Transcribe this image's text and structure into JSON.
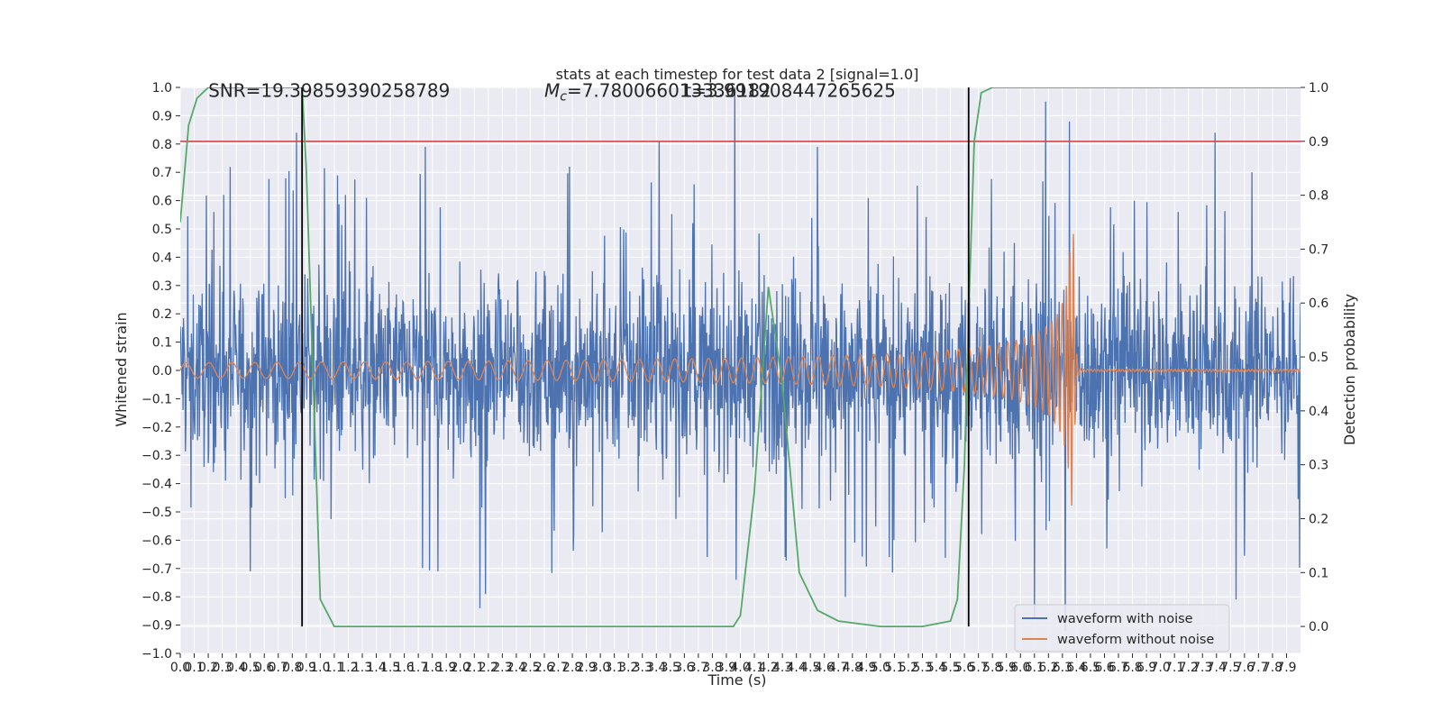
{
  "chart_data": {
    "type": "line",
    "title": "stats at each timestep for test data 2 [signal=1.0]",
    "xlabel": "Time (s)",
    "ylabel": "Whitened strain",
    "ylabel_right": "Detection probability",
    "xlim": [
      0.0,
      8.0
    ],
    "ylim": [
      -1.0,
      1.0
    ],
    "ylim_right": [
      -0.05,
      1.0
    ],
    "y_ticks": [
      -1.0,
      -0.9,
      -0.8,
      -0.7,
      -0.6,
      -0.5,
      -0.4,
      -0.3,
      -0.2,
      -0.1,
      0.0,
      0.1,
      0.2,
      0.3,
      0.4,
      0.5,
      0.6,
      0.7,
      0.8,
      0.9,
      1.0
    ],
    "y_right_ticks": [
      0.0,
      0.1,
      0.2,
      0.3,
      0.4,
      0.5,
      0.6,
      0.7,
      0.8,
      0.9,
      1.0
    ],
    "x_ticks": [
      0.0,
      0.1,
      0.2,
      0.3,
      0.4,
      0.5,
      0.6,
      0.7,
      0.8,
      0.9,
      1.0,
      1.1,
      1.2,
      1.3,
      1.4,
      1.5,
      1.6,
      1.7,
      1.8,
      1.9,
      2.0,
      2.1,
      2.2,
      2.3,
      2.4,
      2.5,
      2.6,
      2.7,
      2.8,
      2.9,
      3.0,
      3.1,
      3.2,
      3.3,
      3.4,
      3.5,
      3.6,
      3.7,
      3.8,
      3.9,
      4.0,
      4.1,
      4.2,
      4.3,
      4.4,
      4.5,
      4.6,
      4.7,
      4.8,
      4.9,
      5.0,
      5.1,
      5.2,
      5.3,
      5.4,
      5.5,
      5.6,
      5.7,
      5.8,
      5.9,
      6.0,
      6.1,
      6.2,
      6.3,
      6.4,
      6.5,
      6.6,
      6.7,
      6.8,
      6.9,
      7.0,
      7.1,
      7.2,
      7.3,
      7.4,
      7.5,
      7.6,
      7.7,
      7.8,
      7.9
    ],
    "annotations": [
      {
        "text": "SNR=19.39859390258789",
        "x": 0.2,
        "y": 0.97
      },
      {
        "text": "M_c=7.780066013336182",
        "x": 2.6,
        "y": 0.97,
        "italic_prefix": "M",
        "subscript": "c"
      },
      {
        "text": "t=3.991908447265625",
        "x": 3.6,
        "y": 0.97
      }
    ],
    "threshold": {
      "value": 0.9,
      "axis": "right",
      "color": "#c44e52"
    },
    "vertical_lines": [
      0.87,
      5.63
    ],
    "series": [
      {
        "name": "waveform with noise",
        "color": "#4c72b0",
        "envelope": {
          "typical_amplitude": 0.22,
          "peak_amplitude": 0.72
        },
        "spikes": [
          [
            0.83,
            0.84
          ],
          [
            0.31,
            0.62
          ],
          [
            1.18,
            0.62
          ],
          [
            1.75,
            0.79
          ],
          [
            2.78,
            0.72
          ],
          [
            3.42,
            0.81
          ],
          [
            3.96,
            1.0
          ],
          [
            4.55,
            0.79
          ],
          [
            6.18,
            0.95
          ],
          [
            6.35,
            0.88
          ],
          [
            7.39,
            0.84
          ],
          [
            0.5,
            -0.71
          ],
          [
            2.18,
            -0.79
          ],
          [
            2.14,
            -0.84
          ],
          [
            3.97,
            -0.74
          ],
          [
            4.75,
            -0.8
          ],
          [
            6.1,
            -0.88
          ],
          [
            6.32,
            -0.92
          ],
          [
            7.54,
            -0.81
          ]
        ]
      },
      {
        "name": "waveform without noise",
        "color": "#dd8452",
        "chirp": {
          "start_amplitude": 0.03,
          "merger_amplitude": 0.53,
          "merger_time": 6.38,
          "ringdown_time": 6.42,
          "start_freq_hz": 6,
          "merger_freq_hz": 40
        }
      },
      {
        "name": "detection probability",
        "axis": "right",
        "color": "#55a868",
        "x": [
          0.0,
          0.06,
          0.12,
          0.2,
          0.3,
          0.5,
          0.87,
          0.9,
          0.95,
          1.0,
          1.1,
          1.2,
          3.6,
          3.95,
          4.0,
          4.1,
          4.2,
          4.3,
          4.42,
          4.55,
          4.7,
          4.85,
          5.0,
          5.1,
          5.2,
          5.3,
          5.5,
          5.55,
          5.6,
          5.63,
          5.67,
          5.72,
          5.8,
          8.0
        ],
        "y": [
          0.75,
          0.93,
          0.98,
          1.0,
          1.0,
          1.0,
          1.0,
          0.85,
          0.45,
          0.05,
          0.0,
          0.0,
          0.0,
          0.0,
          0.02,
          0.25,
          0.63,
          0.45,
          0.1,
          0.03,
          0.01,
          0.005,
          0.0,
          0.0,
          0.0,
          0.0,
          0.01,
          0.05,
          0.3,
          0.58,
          0.9,
          0.99,
          1.0,
          1.0
        ]
      }
    ],
    "legend": {
      "position": "lower-right",
      "entries": [
        {
          "label": "waveform with noise",
          "color": "#4c72b0"
        },
        {
          "label": "waveform without noise",
          "color": "#dd8452"
        }
      ]
    },
    "grid": true,
    "background": "#eaeaf2"
  }
}
